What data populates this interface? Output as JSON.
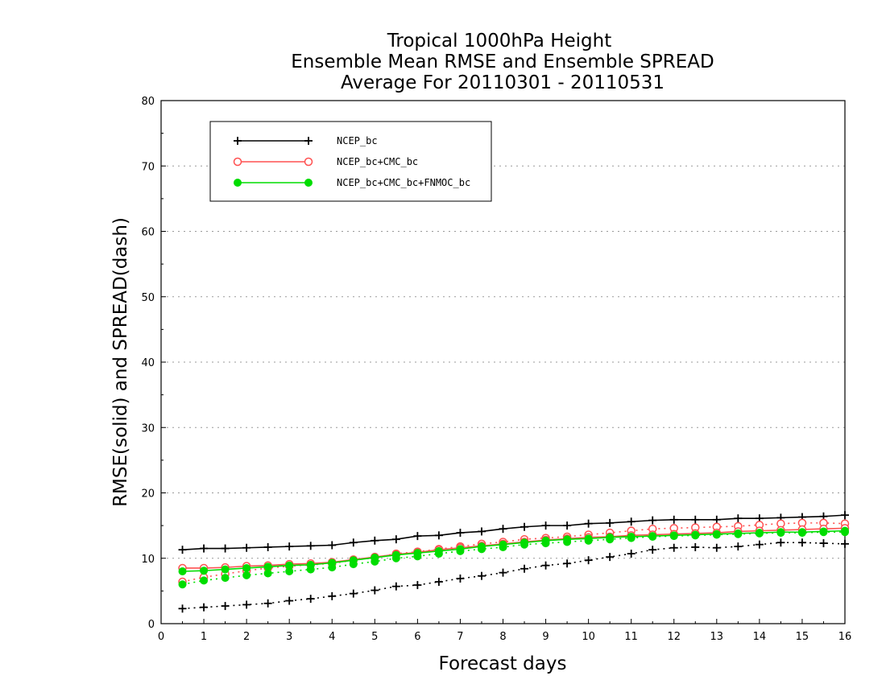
{
  "chart_data": {
    "type": "line",
    "title": [
      "Tropical 1000hPa Height",
      "Ensemble Mean RMSE and Ensemble SPREAD",
      "Average For 20110301 - 20110531"
    ],
    "xlabel": "Forecast days",
    "ylabel": "RMSE(solid) and SPREAD(dash)",
    "xlim": [
      0,
      16
    ],
    "ylim": [
      0,
      80
    ],
    "xticks": [
      "0",
      "1",
      "2",
      "3",
      "4",
      "5",
      "6",
      "7",
      "8",
      "9",
      "10",
      "11",
      "12",
      "13",
      "14",
      "15",
      "16"
    ],
    "yticks": [
      "0",
      "10",
      "20",
      "30",
      "40",
      "50",
      "60",
      "70",
      "80"
    ],
    "grid": true,
    "legend_position": "top-left",
    "x": [
      0.5,
      1,
      1.5,
      2,
      2.5,
      3,
      3.5,
      4,
      4.5,
      5,
      5.5,
      6,
      6.5,
      7,
      7.5,
      8,
      8.5,
      9,
      9.5,
      10,
      10.5,
      11,
      11.5,
      12,
      12.5,
      13,
      13.5,
      14,
      14.5,
      15,
      15.5,
      16
    ],
    "series": [
      {
        "name": "NCEP_bc",
        "color": "#000000",
        "marker": "plus",
        "rmse": [
          11.3,
          11.5,
          11.5,
          11.6,
          11.7,
          11.8,
          11.9,
          12.0,
          12.4,
          12.7,
          12.9,
          13.4,
          13.5,
          13.9,
          14.1,
          14.5,
          14.8,
          15.0,
          15.0,
          15.3,
          15.4,
          15.6,
          15.8,
          15.9,
          15.9,
          15.9,
          16.1,
          16.1,
          16.2,
          16.3,
          16.4,
          16.6
        ],
        "spread": [
          2.3,
          2.5,
          2.7,
          2.9,
          3.1,
          3.5,
          3.8,
          4.2,
          4.6,
          5.1,
          5.7,
          5.9,
          6.4,
          6.9,
          7.3,
          7.8,
          8.4,
          8.9,
          9.2,
          9.7,
          10.2,
          10.7,
          11.3,
          11.6,
          11.7,
          11.6,
          11.8,
          12.1,
          12.4,
          12.4,
          12.3,
          12.2
        ]
      },
      {
        "name": "NCEP_bc+CMC_bc",
        "color": "#ff5050",
        "marker": "open-circle",
        "rmse": [
          8.5,
          8.5,
          8.6,
          8.8,
          8.9,
          9.1,
          9.2,
          9.4,
          9.8,
          10.2,
          10.6,
          10.9,
          11.3,
          11.6,
          11.9,
          12.2,
          12.5,
          12.8,
          13.0,
          13.2,
          13.3,
          13.5,
          13.6,
          13.7,
          13.8,
          13.9,
          14.1,
          14.2,
          14.3,
          14.4,
          14.5,
          14.6
        ],
        "spread": [
          6.4,
          7.1,
          7.6,
          8.1,
          8.5,
          8.8,
          9.0,
          9.2,
          9.7,
          10.1,
          10.7,
          11.0,
          11.4,
          11.8,
          12.2,
          12.5,
          12.9,
          13.1,
          13.3,
          13.6,
          13.9,
          14.2,
          14.5,
          14.6,
          14.7,
          14.8,
          14.9,
          15.1,
          15.3,
          15.4,
          15.4,
          15.3
        ]
      },
      {
        "name": "NCEP_bc+CMC_bc+FNMOC_bc",
        "color": "#00dd00",
        "marker": "filled-circle",
        "rmse": [
          8.0,
          8.1,
          8.3,
          8.5,
          8.7,
          8.9,
          9.0,
          9.3,
          9.7,
          10.1,
          10.5,
          10.8,
          11.1,
          11.4,
          11.8,
          12.1,
          12.4,
          12.7,
          12.9,
          13.0,
          13.2,
          13.3,
          13.4,
          13.5,
          13.6,
          13.7,
          13.8,
          13.9,
          14.0,
          14.0,
          14.1,
          14.2
        ],
        "spread": [
          6.0,
          6.6,
          7.0,
          7.4,
          7.7,
          8.0,
          8.3,
          8.6,
          9.1,
          9.5,
          10.0,
          10.3,
          10.7,
          11.1,
          11.4,
          11.7,
          12.1,
          12.3,
          12.5,
          12.7,
          12.9,
          13.1,
          13.3,
          13.4,
          13.5,
          13.6,
          13.7,
          13.8,
          13.9,
          13.9,
          14.0,
          14.0
        ]
      }
    ]
  }
}
